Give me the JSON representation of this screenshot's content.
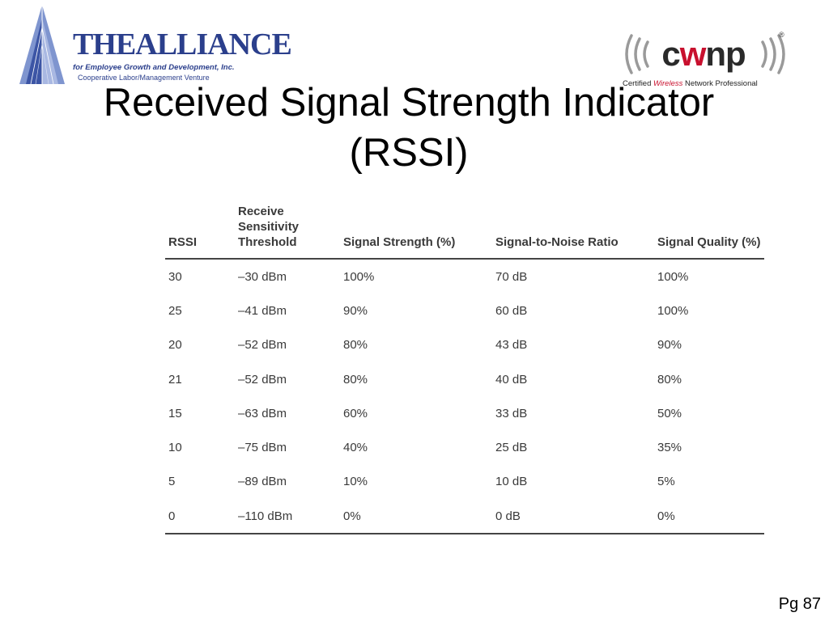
{
  "logos": {
    "alliance": {
      "name": "THEALLIANCE",
      "tagline": "for Employee Growth and Development, Inc.",
      "subtagline": "Cooperative Labor/Management Venture",
      "color": "#2b3f8c"
    },
    "cwnp": {
      "name_prefix": "c",
      "name_accent": "w",
      "name_suffix": "np",
      "registered": "®",
      "tagline_pre": "Certified",
      "tagline_accent": "Wireless",
      "tagline_post": "Network Professional",
      "accent_color": "#c8102e"
    }
  },
  "slide": {
    "title_line1": "Received Signal Strength Indicator",
    "title_line2": "(RSSI)"
  },
  "table": {
    "headers": {
      "rssi": "RSSI",
      "threshold_1": "Receive",
      "threshold_2": "Sensitivity",
      "threshold_3": "Threshold",
      "strength": "Signal Strength (%)",
      "snr": "Signal-to-Noise Ratio",
      "quality": "Signal Quality (%)"
    },
    "rows": [
      [
        "30",
        "–30 dBm",
        "100%",
        "70 dB",
        "100%"
      ],
      [
        "25",
        "–41 dBm",
        "90%",
        "60 dB",
        "100%"
      ],
      [
        "20",
        "–52 dBm",
        "80%",
        "43 dB",
        "90%"
      ],
      [
        "21",
        "–52 dBm",
        "80%",
        "40 dB",
        "80%"
      ],
      [
        "15",
        "–63 dBm",
        "60%",
        "33 dB",
        "50%"
      ],
      [
        "10",
        "–75 dBm",
        "40%",
        "25 dB",
        "35%"
      ],
      [
        "5",
        "–89 dBm",
        "10%",
        "10 dB",
        "5%"
      ],
      [
        "0",
        "–110 dBm",
        "0%",
        "0 dB",
        "0%"
      ]
    ]
  },
  "footer": {
    "page": "Pg 87"
  }
}
